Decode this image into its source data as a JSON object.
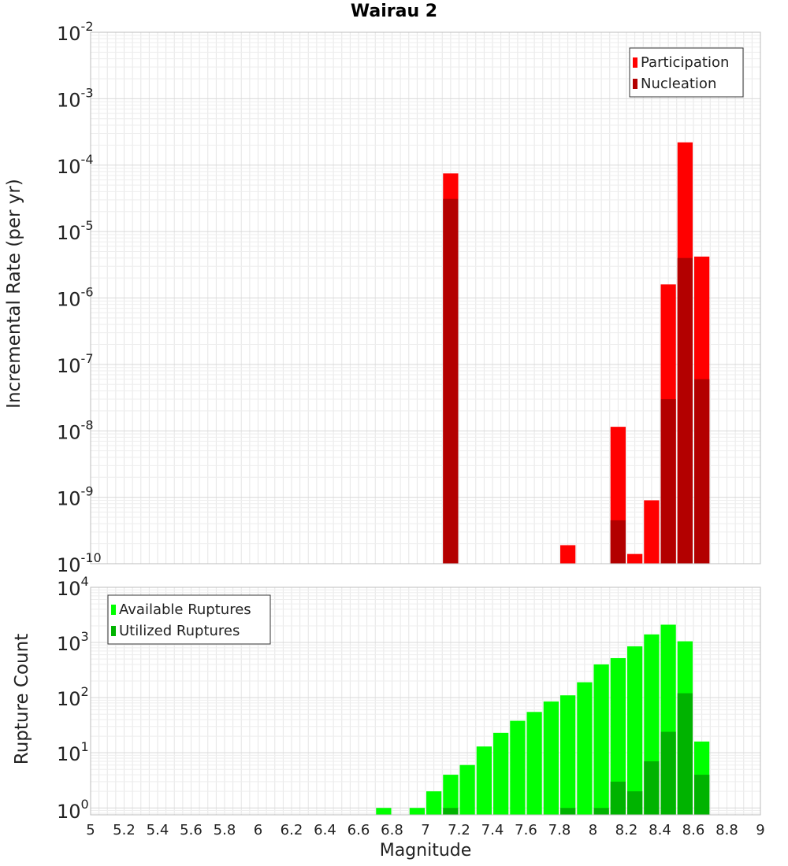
{
  "chart_data": [
    {
      "type": "bar",
      "title": "Wairau 2",
      "xlabel": "Magnitude",
      "ylabel": "Incremental Rate (per yr)",
      "yscale": "log",
      "ylim": [
        1e-10,
        0.01
      ],
      "xlim": [
        5,
        9
      ],
      "bin_width": 0.1,
      "y_ticks": [
        {
          "base": "10",
          "exp": "-2"
        },
        {
          "base": "10",
          "exp": "-3"
        },
        {
          "base": "10",
          "exp": "-4"
        },
        {
          "base": "10",
          "exp": "-5"
        },
        {
          "base": "10",
          "exp": "-6"
        },
        {
          "base": "10",
          "exp": "-7"
        },
        {
          "base": "10",
          "exp": "-8"
        },
        {
          "base": "10",
          "exp": "-9"
        },
        {
          "base": "10",
          "exp": "-10"
        }
      ],
      "legend": {
        "position": "top-right",
        "entries": [
          "Participation",
          "Nucleation"
        ]
      },
      "grid": true,
      "series": [
        {
          "name": "Participation",
          "color": "#ff0000",
          "x": [
            7.15,
            7.85,
            8.15,
            8.25,
            8.35,
            8.45,
            8.55,
            8.65
          ],
          "values": [
            7.5e-05,
            1.9e-10,
            1.15e-08,
            1.4e-10,
            9e-10,
            1.6e-06,
            0.00022,
            4.2e-06
          ]
        },
        {
          "name": "Nucleation",
          "color": "#b30000",
          "x": [
            7.15,
            8.15,
            8.45,
            8.55,
            8.65
          ],
          "values": [
            3.1e-05,
            4.5e-10,
            3e-08,
            4e-06,
            6e-08
          ]
        }
      ]
    },
    {
      "type": "bar",
      "xlabel": "Magnitude",
      "ylabel": "Rupture Count",
      "yscale": "log",
      "ylim": [
        0.75,
        10000.0
      ],
      "xlim": [
        5,
        9
      ],
      "bin_width": 0.1,
      "y_ticks": [
        {
          "base": "10",
          "exp": "4",
          "value": 10000
        },
        {
          "base": "10",
          "exp": "3",
          "value": 1000
        },
        {
          "base": "10",
          "exp": "2",
          "value": 100
        },
        {
          "base": "10",
          "exp": "1",
          "value": 10
        },
        {
          "base": "10",
          "exp": "0",
          "value": 1
        }
      ],
      "x_ticks": [
        "5",
        "5.2",
        "5.4",
        "5.6",
        "5.8",
        "6",
        "6.2",
        "6.4",
        "6.6",
        "6.8",
        "7",
        "7.2",
        "7.4",
        "7.6",
        "7.8",
        "8",
        "8.2",
        "8.4",
        "8.6",
        "8.8",
        "9"
      ],
      "legend": {
        "position": "top-left",
        "entries": [
          "Available Ruptures",
          "Utilized Ruptures"
        ]
      },
      "grid": true,
      "series": [
        {
          "name": "Available Ruptures",
          "color": "#00ff00",
          "x": [
            6.75,
            6.95,
            7.05,
            7.15,
            7.25,
            7.35,
            7.45,
            7.55,
            7.65,
            7.75,
            7.85,
            7.95,
            8.05,
            8.15,
            8.25,
            8.35,
            8.45,
            8.55,
            8.65
          ],
          "values": [
            1,
            1,
            2,
            4,
            6,
            13,
            23,
            38,
            55,
            85,
            110,
            190,
            400,
            520,
            850,
            1400,
            2100,
            1050,
            16
          ]
        },
        {
          "name": "Utilized Ruptures",
          "color": "#00b300",
          "x": [
            7.15,
            7.85,
            8.05,
            8.15,
            8.25,
            8.35,
            8.45,
            8.55,
            8.65
          ],
          "values": [
            1,
            1,
            1,
            3,
            2,
            7,
            24,
            120,
            4
          ]
        }
      ]
    }
  ]
}
